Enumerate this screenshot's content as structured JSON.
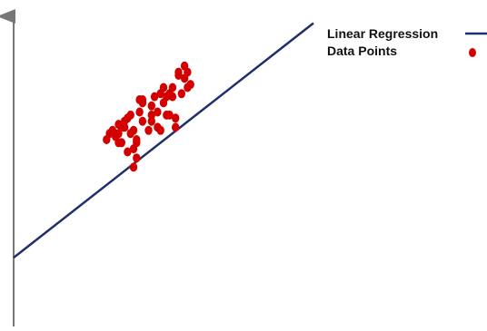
{
  "chart_data": {
    "type": "scatter",
    "title": "",
    "xlabel": "",
    "ylabel": "",
    "xlim": [
      0,
      100
    ],
    "ylim": [
      0,
      100
    ],
    "grid": false,
    "legend_position": "top-right",
    "regression_line": {
      "name": "Linear Regression",
      "color": "#1f2f6b",
      "x": [
        0,
        100
      ],
      "y": [
        19.5,
        96
      ]
    },
    "series": [
      {
        "name": "Data Points",
        "color": "#d40000",
        "x": [
          31,
          32,
          33,
          34,
          35,
          35,
          35,
          36,
          36,
          37,
          37,
          38,
          38,
          39,
          39,
          40,
          40,
          40,
          41,
          41,
          41,
          42,
          42,
          43,
          43,
          43,
          45,
          46,
          46,
          46,
          47,
          48,
          48,
          49,
          49,
          50,
          50,
          51,
          51,
          52,
          52,
          53,
          53,
          54,
          54,
          55,
          55,
          56,
          57,
          57,
          58,
          58,
          59
        ],
        "y": [
          58,
          60,
          61,
          59,
          63,
          60,
          57,
          62,
          57,
          62,
          64,
          54,
          65,
          60,
          66,
          55,
          61,
          49,
          52,
          58,
          57,
          67,
          71,
          64,
          70,
          71,
          61,
          69,
          66,
          64,
          72,
          62,
          67,
          73,
          61,
          70,
          75,
          72,
          66,
          66,
          73,
          75,
          72,
          62,
          65,
          80,
          79,
          73,
          78,
          82,
          75,
          80,
          76
        ]
      }
    ]
  }
}
